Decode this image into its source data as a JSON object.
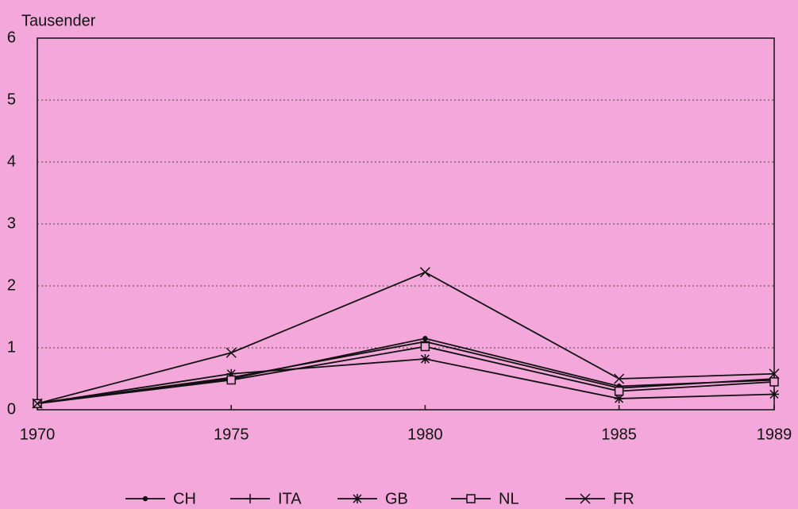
{
  "chart_data": {
    "type": "line",
    "y_label": "Tausender",
    "x": [
      1970,
      1975,
      1980,
      1985,
      1989
    ],
    "xlim": [
      1970,
      1989
    ],
    "xticks": [
      1970,
      1975,
      1980,
      1985,
      1989
    ],
    "ylim": [
      0,
      6
    ],
    "yticks": [
      0,
      1,
      2,
      3,
      4,
      5,
      6
    ],
    "grid": true,
    "legend": "bottom",
    "series": [
      {
        "name": "CH",
        "color": "#111111",
        "marker": "dot",
        "values": [
          0.1,
          0.5,
          1.15,
          0.38,
          0.48
        ]
      },
      {
        "name": "ITA",
        "color": "#111111",
        "marker": "plus",
        "values": [
          0.1,
          0.52,
          1.1,
          0.35,
          0.5
        ]
      },
      {
        "name": "GB",
        "color": "#111111",
        "marker": "asterisk",
        "values": [
          0.1,
          0.58,
          0.82,
          0.18,
          0.25
        ]
      },
      {
        "name": "NL",
        "color": "#111111",
        "marker": "square",
        "values": [
          0.1,
          0.48,
          1.02,
          0.3,
          0.45
        ]
      },
      {
        "name": "FR",
        "color": "#111111",
        "marker": "x",
        "values": [
          0.1,
          0.92,
          2.22,
          0.5,
          0.58
        ]
      }
    ]
  }
}
